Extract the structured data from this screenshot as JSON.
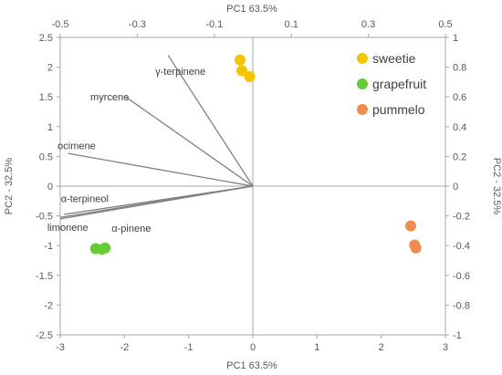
{
  "chart_data": {
    "type": "scatter",
    "x_bottom": {
      "label": "PC1 63.5%",
      "range": [
        -3,
        3
      ],
      "ticks": [
        -3,
        -2,
        -1,
        0,
        1,
        2,
        3
      ],
      "tick_labels": [
        "-3",
        "-2",
        "-1",
        "0",
        "1",
        "2",
        "3"
      ]
    },
    "y_left": {
      "label": "PC2 - 32.5%",
      "range": [
        -2.5,
        2.5
      ],
      "ticks": [
        -2.5,
        -2,
        -1.5,
        -1,
        -0.5,
        0,
        0.5,
        1,
        1.5,
        2,
        2.5
      ],
      "tick_labels": [
        "-2.5",
        "-2",
        "-1.5",
        "-1",
        "-0.5",
        "0",
        "0.5",
        "1",
        "1.5",
        "2",
        "2.5"
      ]
    },
    "x_top": {
      "label": "PC1 63.5%",
      "range": [
        -0.5,
        0.5
      ],
      "ticks": [
        -0.5,
        -0.3,
        -0.1,
        0.1,
        0.3,
        0.5
      ],
      "tick_labels": [
        "-0.5",
        "-0.3",
        "-0.1",
        "0.1",
        "0.3",
        "0.5"
      ]
    },
    "y_right": {
      "label": "PC2 - 32.5%",
      "range": [
        -1,
        1
      ],
      "ticks": [
        -1,
        -0.8,
        -0.6,
        -0.4,
        -0.2,
        0,
        0.2,
        0.4,
        0.6,
        0.8,
        1
      ],
      "tick_labels": [
        "-1",
        "-0.8",
        "-0.6",
        "-0.4",
        "-0.2",
        "0",
        "0.2",
        "0.4",
        "0.6",
        "0.8",
        "1"
      ]
    },
    "grid": false,
    "legend_position": "top-right",
    "series": [
      {
        "name": "sweetie",
        "color": "#F5C400",
        "points": [
          [
            -0.2,
            2.12
          ],
          [
            -0.17,
            1.94
          ],
          [
            -0.05,
            1.84
          ]
        ]
      },
      {
        "name": "grapefruit",
        "color": "#66CC33",
        "points": [
          [
            -2.45,
            -1.05
          ],
          [
            -2.35,
            -1.06
          ],
          [
            -2.3,
            -1.04
          ]
        ]
      },
      {
        "name": "pummelo",
        "color": "#F08C4E",
        "points": [
          [
            2.46,
            -0.67
          ],
          [
            2.52,
            -0.99
          ],
          [
            2.54,
            -1.04
          ]
        ]
      }
    ],
    "loadings": {
      "color": "#808080",
      "vectors": [
        {
          "label": "γ-terpinene",
          "x": -0.22,
          "y": 0.88,
          "label_x": -1.52,
          "label_y": 1.87,
          "anchor": "start"
        },
        {
          "label": "myrcene",
          "x": -0.33,
          "y": 0.6,
          "label_x": -2.53,
          "label_y": 1.44,
          "anchor": "start"
        },
        {
          "label": "ocimene",
          "x": -0.48,
          "y": 0.22,
          "label_x": -3.04,
          "label_y": 0.62,
          "anchor": "start"
        },
        {
          "label": "α-terpineol",
          "x": -0.49,
          "y": -0.19,
          "label_x": -2.99,
          "label_y": -0.27,
          "anchor": "start"
        },
        {
          "label": "limonene",
          "x": -0.5,
          "y": -0.21,
          "label_x": -3.2,
          "label_y": -0.75,
          "anchor": "start"
        },
        {
          "label": "α-pinene",
          "x": -0.5,
          "y": -0.22,
          "label_x": -2.2,
          "label_y": -0.77,
          "anchor": "start"
        }
      ]
    }
  }
}
